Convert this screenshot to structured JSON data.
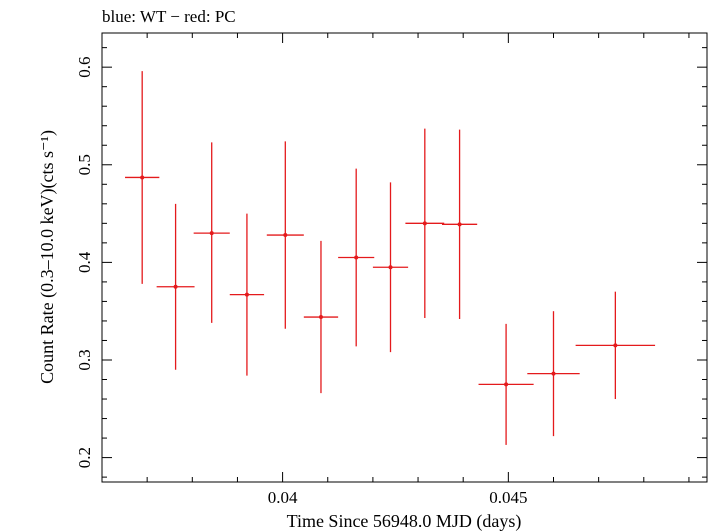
{
  "chart_data": {
    "type": "scatter",
    "title": "blue: WT − red: PC",
    "xlabel": "Time Since 56948.0 MJD (days)",
    "ylabel": "Count Rate (0.3–10.0 keV)(cts s⁻¹)",
    "xlim": [
      0.036,
      0.0494
    ],
    "ylim": [
      0.175,
      0.635
    ],
    "x_ticks": [
      {
        "value": 0.04,
        "label": "0.04"
      },
      {
        "value": 0.045,
        "label": "0.045"
      }
    ],
    "y_ticks": [
      {
        "value": 0.2,
        "label": "0.2"
      },
      {
        "value": 0.3,
        "label": "0.3"
      },
      {
        "value": 0.4,
        "label": "0.4"
      },
      {
        "value": 0.5,
        "label": "0.5"
      },
      {
        "value": 0.6,
        "label": "0.6"
      }
    ],
    "series": [
      {
        "name": "PC",
        "color": "#e41a1c",
        "points": [
          {
            "x": 0.03689,
            "xerr": 0.00038,
            "y": 0.487,
            "yerr_lo": 0.109,
            "yerr_hi": 0.109
          },
          {
            "x": 0.03763,
            "xerr": 0.00042,
            "y": 0.375,
            "yerr_lo": 0.085,
            "yerr_hi": 0.085
          },
          {
            "x": 0.03843,
            "xerr": 0.0004,
            "y": 0.43,
            "yerr_lo": 0.092,
            "yerr_hi": 0.093
          },
          {
            "x": 0.03921,
            "xerr": 0.00038,
            "y": 0.367,
            "yerr_lo": 0.083,
            "yerr_hi": 0.083
          },
          {
            "x": 0.04006,
            "xerr": 0.00041,
            "y": 0.428,
            "yerr_lo": 0.096,
            "yerr_hi": 0.096
          },
          {
            "x": 0.04085,
            "xerr": 0.00038,
            "y": 0.344,
            "yerr_lo": 0.078,
            "yerr_hi": 0.078
          },
          {
            "x": 0.04163,
            "xerr": 0.0004,
            "y": 0.405,
            "yerr_lo": 0.091,
            "yerr_hi": 0.091
          },
          {
            "x": 0.04239,
            "xerr": 0.00039,
            "y": 0.395,
            "yerr_lo": 0.087,
            "yerr_hi": 0.087
          },
          {
            "x": 0.04315,
            "xerr": 0.00043,
            "y": 0.44,
            "yerr_lo": 0.097,
            "yerr_hi": 0.097
          },
          {
            "x": 0.04392,
            "xerr": 0.00039,
            "y": 0.439,
            "yerr_lo": 0.097,
            "yerr_hi": 0.097
          },
          {
            "x": 0.04495,
            "xerr": 0.00061,
            "y": 0.275,
            "yerr_lo": 0.062,
            "yerr_hi": 0.062
          },
          {
            "x": 0.046,
            "xerr": 0.00058,
            "y": 0.286,
            "yerr_lo": 0.064,
            "yerr_hi": 0.064
          },
          {
            "x": 0.04737,
            "xerr": 0.00088,
            "y": 0.315,
            "yerr_lo": 0.055,
            "yerr_hi": 0.055
          }
        ]
      }
    ],
    "grid": false,
    "legend": "none"
  }
}
